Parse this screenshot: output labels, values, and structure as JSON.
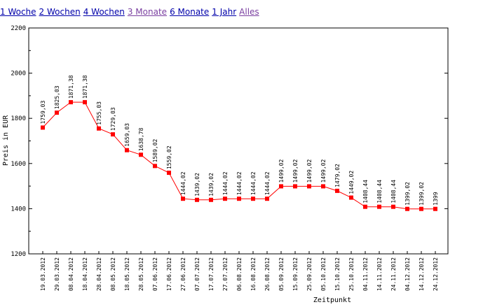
{
  "nav": {
    "links": [
      "1 Woche",
      "2 Wochen",
      "4 Wochen",
      "3 Monate",
      "6 Monate",
      "1 Jahr",
      "Alles"
    ],
    "link_color": "#0000aa",
    "visited_color": "#7a3fa0",
    "visited": [
      3,
      6
    ]
  },
  "chart_data": {
    "type": "line",
    "xlabel": "Zeitpunkt",
    "ylabel": "Preis in EUR",
    "ylim": [
      1200,
      2200
    ],
    "yticks": [
      1200,
      1400,
      1600,
      1800,
      2000,
      2200
    ],
    "grid": false,
    "line_color": "#ff0000",
    "marker_color": "#ff0000",
    "categories": [
      "19.03.2012",
      "29.03.2012",
      "08.04.2012",
      "18.04.2012",
      "28.04.2012",
      "08.05.2012",
      "18.05.2012",
      "28.05.2012",
      "07.06.2012",
      "17.06.2012",
      "27.06.2012",
      "07.07.2012",
      "17.07.2012",
      "27.07.2012",
      "06.08.2012",
      "16.08.2012",
      "26.08.2012",
      "05.09.2012",
      "15.09.2012",
      "25.09.2012",
      "05.10.2012",
      "15.10.2012",
      "25.10.2012",
      "04.11.2012",
      "14.11.2012",
      "24.11.2012",
      "04.12.2012",
      "14.12.2012",
      "24.12.2012"
    ],
    "values": [
      1759.03,
      1825.03,
      1871.38,
      1871.38,
      1755.03,
      1729.03,
      1659.03,
      1638.78,
      1589.02,
      1559.02,
      1444.02,
      1439.02,
      1439.02,
      1444.02,
      1444.02,
      1444.02,
      1444.02,
      1499.02,
      1499.02,
      1499.02,
      1499.02,
      1479.02,
      1449.02,
      1408.44,
      1408.44,
      1408.44,
      1399.02,
      1399.02,
      1399
    ],
    "value_labels": [
      "1759,03",
      "1825,03",
      "1871,38",
      "1871,38",
      "1755,03",
      "1729,03",
      "1659,03",
      "1638,78",
      "1589,02",
      "1559,02",
      "1444,02",
      "1439,02",
      "1439,02",
      "1444,02",
      "1444,02",
      "1444,02",
      "1444,02",
      "1499,02",
      "1499,02",
      "1499,02",
      "1499,02",
      "1479,02",
      "1449,02",
      "1408,44",
      "1408,44",
      "1408,44",
      "1399,02",
      "1399,02",
      "1399"
    ]
  }
}
